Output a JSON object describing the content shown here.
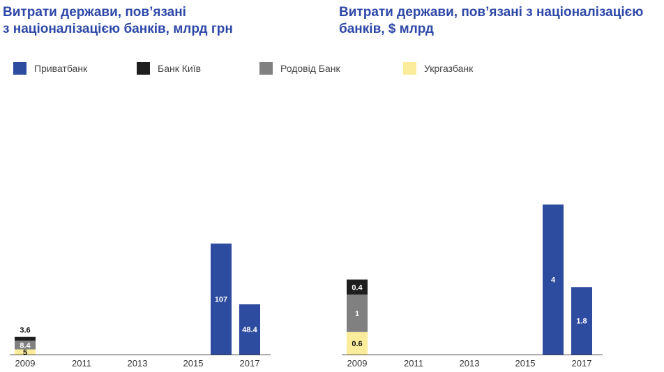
{
  "titles": {
    "left": [
      "Витрати держави, пов’язані",
      "з націоналізацією банків, млрд грн"
    ],
    "right": [
      "Витрати держави, пов’язані з націоналізацією",
      "банків, $ млрд"
    ]
  },
  "legend": [
    {
      "label": "Приватбанк",
      "color": "#2e4c9f"
    },
    {
      "label": "Банк Київ",
      "color": "#1e1e1e"
    },
    {
      "label": "Родовід Банк",
      "color": "#808080"
    },
    {
      "label": "Укргазбанк",
      "color": "#fbec9c"
    }
  ],
  "chart_data": [
    {
      "type": "bar",
      "stacked": true,
      "title": "Витрати держави, пов’язані з націоналізацією банків, млрд грн",
      "x_ticks": [
        "2009",
        "2011",
        "2013",
        "2015",
        "2017"
      ],
      "categories": [
        "2009",
        "2016",
        "2017"
      ],
      "series": [
        {
          "name": "Укргазбанк",
          "color": "#fbec9c",
          "values": [
            5,
            0,
            0
          ],
          "labels": [
            "5",
            "",
            ""
          ]
        },
        {
          "name": "Родовід Банк",
          "color": "#808080",
          "values": [
            8.4,
            0,
            0
          ],
          "labels": [
            "8.4",
            "",
            ""
          ]
        },
        {
          "name": "Банк Київ",
          "color": "#1e1e1e",
          "values": [
            3.6,
            0,
            0
          ],
          "labels": [
            "3.6",
            "",
            ""
          ]
        },
        {
          "name": "Приватбанк",
          "color": "#2e4c9f",
          "values": [
            0,
            107,
            48.4
          ],
          "labels": [
            "",
            "107",
            "48.4"
          ]
        }
      ],
      "ylim": [
        0,
        150
      ]
    },
    {
      "type": "bar",
      "stacked": true,
      "title": "Витрати держави, пов’язані з націоналізацією банків, $ млрд",
      "x_ticks": [
        "2009",
        "2011",
        "2013",
        "2015",
        "2017"
      ],
      "categories": [
        "2009",
        "2016",
        "2017"
      ],
      "series": [
        {
          "name": "Укргазбанк",
          "color": "#fbec9c",
          "values": [
            0.6,
            0,
            0
          ],
          "labels": [
            "0.6",
            "",
            ""
          ]
        },
        {
          "name": "Родовід Банк",
          "color": "#808080",
          "values": [
            1,
            0,
            0
          ],
          "labels": [
            "1",
            "",
            ""
          ]
        },
        {
          "name": "Банк Київ",
          "color": "#1e1e1e",
          "values": [
            0.4,
            0,
            0
          ],
          "labels": [
            "0.4",
            "",
            ""
          ]
        },
        {
          "name": "Приватбанк",
          "color": "#2e4c9f",
          "values": [
            0,
            4,
            1.8
          ],
          "labels": [
            "",
            "4",
            "1.8"
          ]
        }
      ],
      "ylim": [
        0,
        4.15
      ]
    }
  ]
}
